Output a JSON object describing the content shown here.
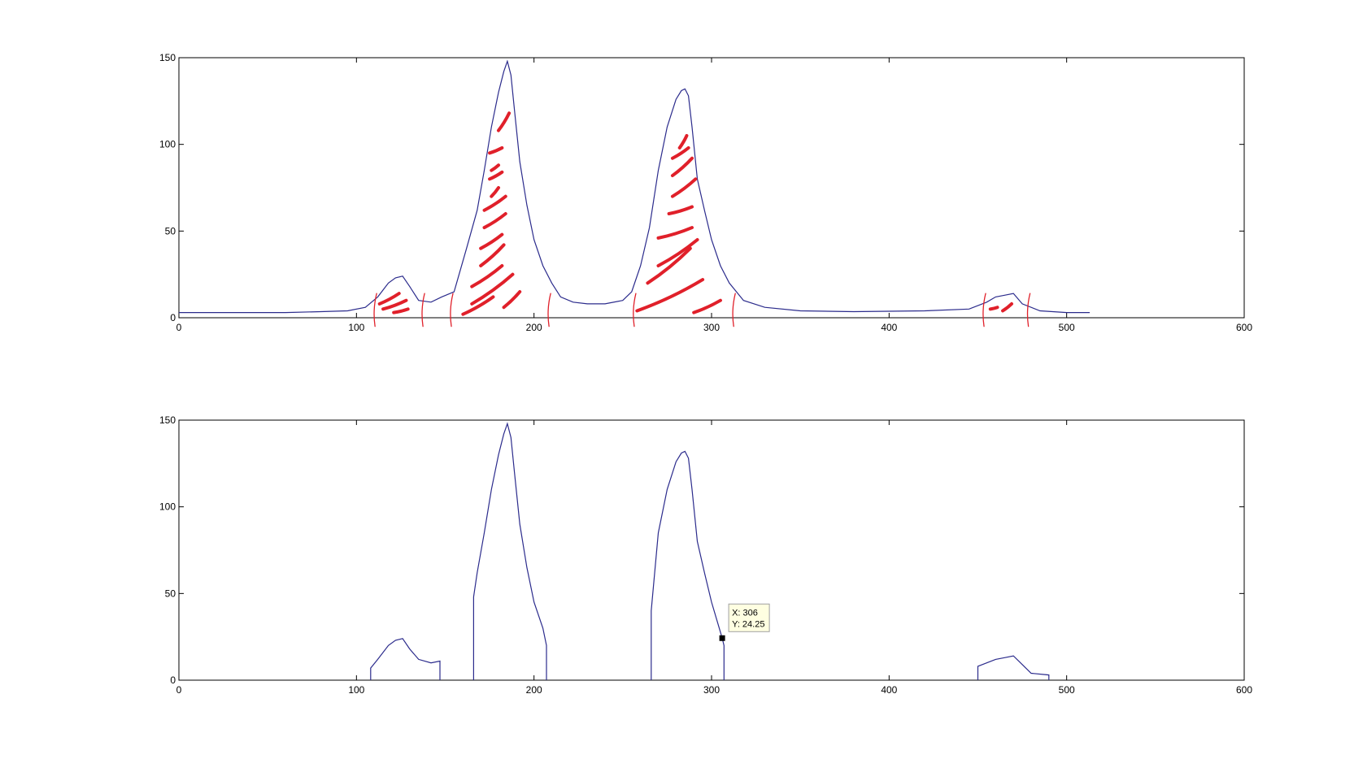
{
  "figure": {
    "background": "#ffffff"
  },
  "chart_data": [
    {
      "type": "line",
      "title": "",
      "xlabel": "",
      "ylabel": "",
      "xlim": [
        0,
        600
      ],
      "ylim": [
        0,
        150
      ],
      "xticks": [
        0,
        100,
        200,
        300,
        400,
        500,
        600
      ],
      "yticks": [
        0,
        50,
        100,
        150
      ],
      "xtick_labels": [
        "0",
        "100",
        "200",
        "300",
        "400",
        "500",
        "600"
      ],
      "ytick_labels": [
        "0",
        "50",
        "100",
        "150"
      ],
      "grid": false,
      "line_color": "#2b2b8c",
      "series": [
        {
          "x": [
            0,
            20,
            40,
            60,
            80,
            95,
            105,
            112,
            118,
            122,
            126,
            130,
            135,
            142,
            148,
            155,
            162,
            168,
            172,
            176,
            180,
            183,
            185,
            187,
            189,
            192,
            196,
            200,
            205,
            210,
            215,
            222,
            230,
            240,
            250,
            255,
            260,
            265,
            270,
            275,
            280,
            283,
            285,
            287,
            289,
            292,
            296,
            300,
            305,
            310,
            318,
            330,
            350,
            380,
            420,
            445,
            455,
            460,
            465,
            470,
            475,
            485,
            500,
            513
          ],
          "y": [
            3,
            3,
            3,
            3,
            3.5,
            4,
            6,
            12,
            20,
            23,
            24,
            18,
            10,
            9,
            12,
            15,
            40,
            62,
            85,
            110,
            130,
            142,
            148,
            140,
            120,
            90,
            65,
            45,
            30,
            20,
            12,
            9,
            8,
            8,
            10,
            15,
            30,
            52,
            85,
            110,
            126,
            131,
            132,
            128,
            110,
            80,
            62,
            45,
            30,
            20,
            10,
            6,
            4,
            3.5,
            4,
            5,
            9,
            12,
            13,
            14,
            8,
            4,
            3,
            3
          ]
        }
      ],
      "annotation_marks": {
        "color": "#e0202a",
        "boundary_x": [
          110,
          137,
          153,
          208,
          256,
          312,
          453,
          478
        ]
      }
    },
    {
      "type": "line",
      "title": "",
      "xlabel": "",
      "ylabel": "",
      "xlim": [
        0,
        600
      ],
      "ylim": [
        0,
        150
      ],
      "xticks": [
        0,
        100,
        200,
        300,
        400,
        500,
        600
      ],
      "yticks": [
        0,
        50,
        100,
        150
      ],
      "xtick_labels": [
        "0",
        "100",
        "200",
        "300",
        "400",
        "500",
        "600"
      ],
      "ytick_labels": [
        "0",
        "50",
        "100",
        "150"
      ],
      "grid": false,
      "line_color": "#2b2b8c",
      "series": [
        {
          "segments": [
            {
              "x": [
                108,
                108,
                112,
                118,
                122,
                126,
                130,
                135,
                142,
                147,
                147
              ],
              "y": [
                0,
                7,
                12,
                20,
                23,
                24,
                18,
                12,
                10,
                11,
                0
              ]
            },
            {
              "x": [
                166,
                166,
                168,
                172,
                176,
                180,
                183,
                185,
                187,
                189,
                192,
                196,
                200,
                205,
                207,
                207
              ],
              "y": [
                0,
                48,
                62,
                85,
                110,
                130,
                142,
                148,
                140,
                120,
                90,
                65,
                45,
                30,
                20,
                0
              ]
            },
            {
              "x": [
                266,
                266,
                270,
                275,
                280,
                283,
                285,
                287,
                289,
                292,
                296,
                300,
                306,
                307,
                307
              ],
              "y": [
                0,
                40,
                85,
                110,
                126,
                131,
                132,
                128,
                110,
                80,
                62,
                45,
                24.25,
                20,
                0
              ]
            },
            {
              "x": [
                450,
                450,
                455,
                460,
                465,
                470,
                475,
                480,
                490,
                490
              ],
              "y": [
                0,
                8,
                10,
                12,
                13,
                14,
                9,
                4,
                3,
                0
              ]
            }
          ]
        }
      ],
      "datatip": {
        "x": 306,
        "y": 24.25,
        "line1": "X: 306",
        "line2": "Y: 24.25"
      }
    }
  ]
}
